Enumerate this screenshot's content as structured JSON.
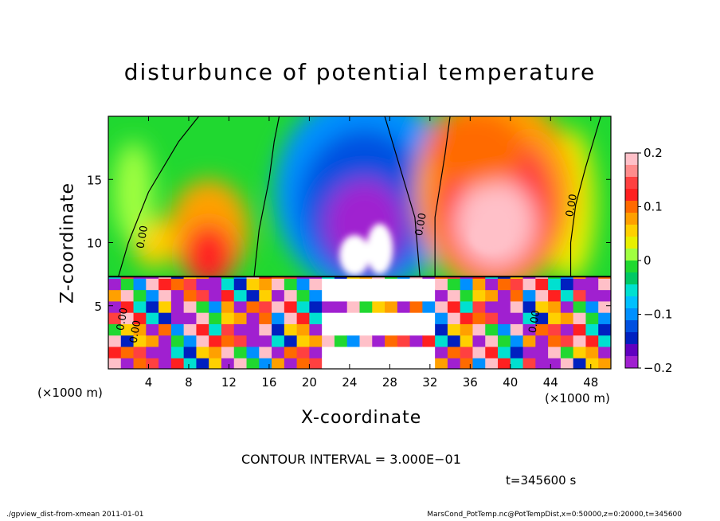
{
  "chart_data": {
    "type": "heatmap",
    "title": "disturbunce of potential temperature",
    "xlabel": "X-coordinate",
    "ylabel": "Z-coordinate",
    "x_unit": "(×1000 m)",
    "y_unit": "(×1000 m)",
    "xlim": [
      0,
      50
    ],
    "ylim": [
      0,
      20
    ],
    "xticks": [
      4,
      8,
      12,
      16,
      20,
      24,
      28,
      32,
      36,
      40,
      44,
      48
    ],
    "yticks": [
      5,
      10,
      15
    ],
    "colorbar": {
      "range": [
        -0.2,
        0.2
      ],
      "ticks": [
        0.2,
        0.1,
        0,
        -0.1,
        -0.2
      ],
      "tick_labels": [
        "0.2",
        "0.1",
        "0",
        "−0.1",
        "−0.2"
      ],
      "colors": [
        "#ffc0c8",
        "#ff8c8c",
        "#ff4040",
        "#ff2020",
        "#ff6a00",
        "#ffa000",
        "#ffd000",
        "#e8f000",
        "#a0ff40",
        "#20d830",
        "#00c864",
        "#00e0d0",
        "#00c0ff",
        "#0090ff",
        "#0050e0",
        "#0020c0",
        "#6000c0",
        "#a020d0"
      ]
    },
    "contour_labels": [
      "0.00",
      "0.00",
      "0.00",
      "0.00",
      "0.00",
      "0.00"
    ],
    "contour_interval": "CONTOUR INTERVAL = 3.000E−01",
    "anomalies": [
      {
        "x": 25.5,
        "z": 12.5,
        "value": -0.2
      },
      {
        "x": 38.5,
        "z": 12.5,
        "value": 0.2
      },
      {
        "x": 10,
        "z": 13,
        "value": 0.08
      },
      {
        "x": 5,
        "z": 16,
        "value": 0.0
      },
      {
        "x": 46,
        "z": 13,
        "value": 0.02
      }
    ]
  },
  "time_label": "t=345600 s",
  "footer": {
    "left": "./gpview_dist-from-xmean   2011-01-01",
    "right": "MarsCond_PotTemp.nc@PotTempDist,x=0:50000,z=0:20000,t=345600"
  }
}
